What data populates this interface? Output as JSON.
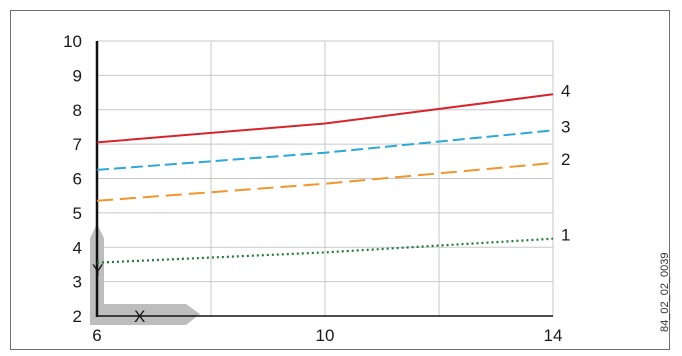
{
  "chart_data": {
    "type": "line",
    "title": "",
    "xlabel": "X",
    "ylabel": "Y",
    "xlim": [
      6,
      14
    ],
    "ylim": [
      2,
      10
    ],
    "x_ticks": [
      6,
      10,
      14
    ],
    "y_ticks": [
      2,
      3,
      4,
      5,
      6,
      7,
      8,
      9,
      10
    ],
    "grid": true,
    "series": [
      {
        "name": "1",
        "x": [
          6,
          10,
          14
        ],
        "y": [
          3.55,
          3.85,
          4.25
        ],
        "color": "#1e7a3a",
        "style": "dotted"
      },
      {
        "name": "2",
        "x": [
          6,
          10,
          14
        ],
        "y": [
          5.35,
          5.85,
          6.45
        ],
        "color": "#f0962a",
        "style": "dashed-long"
      },
      {
        "name": "3",
        "x": [
          6,
          10,
          14
        ],
        "y": [
          6.25,
          6.75,
          7.4
        ],
        "color": "#2aa8d8",
        "style": "dashed"
      },
      {
        "name": "4",
        "x": [
          6,
          10,
          14
        ],
        "y": [
          7.05,
          7.6,
          8.45
        ],
        "color": "#d8232a",
        "style": "solid"
      }
    ]
  },
  "figure_code": "84_02_02_0039"
}
